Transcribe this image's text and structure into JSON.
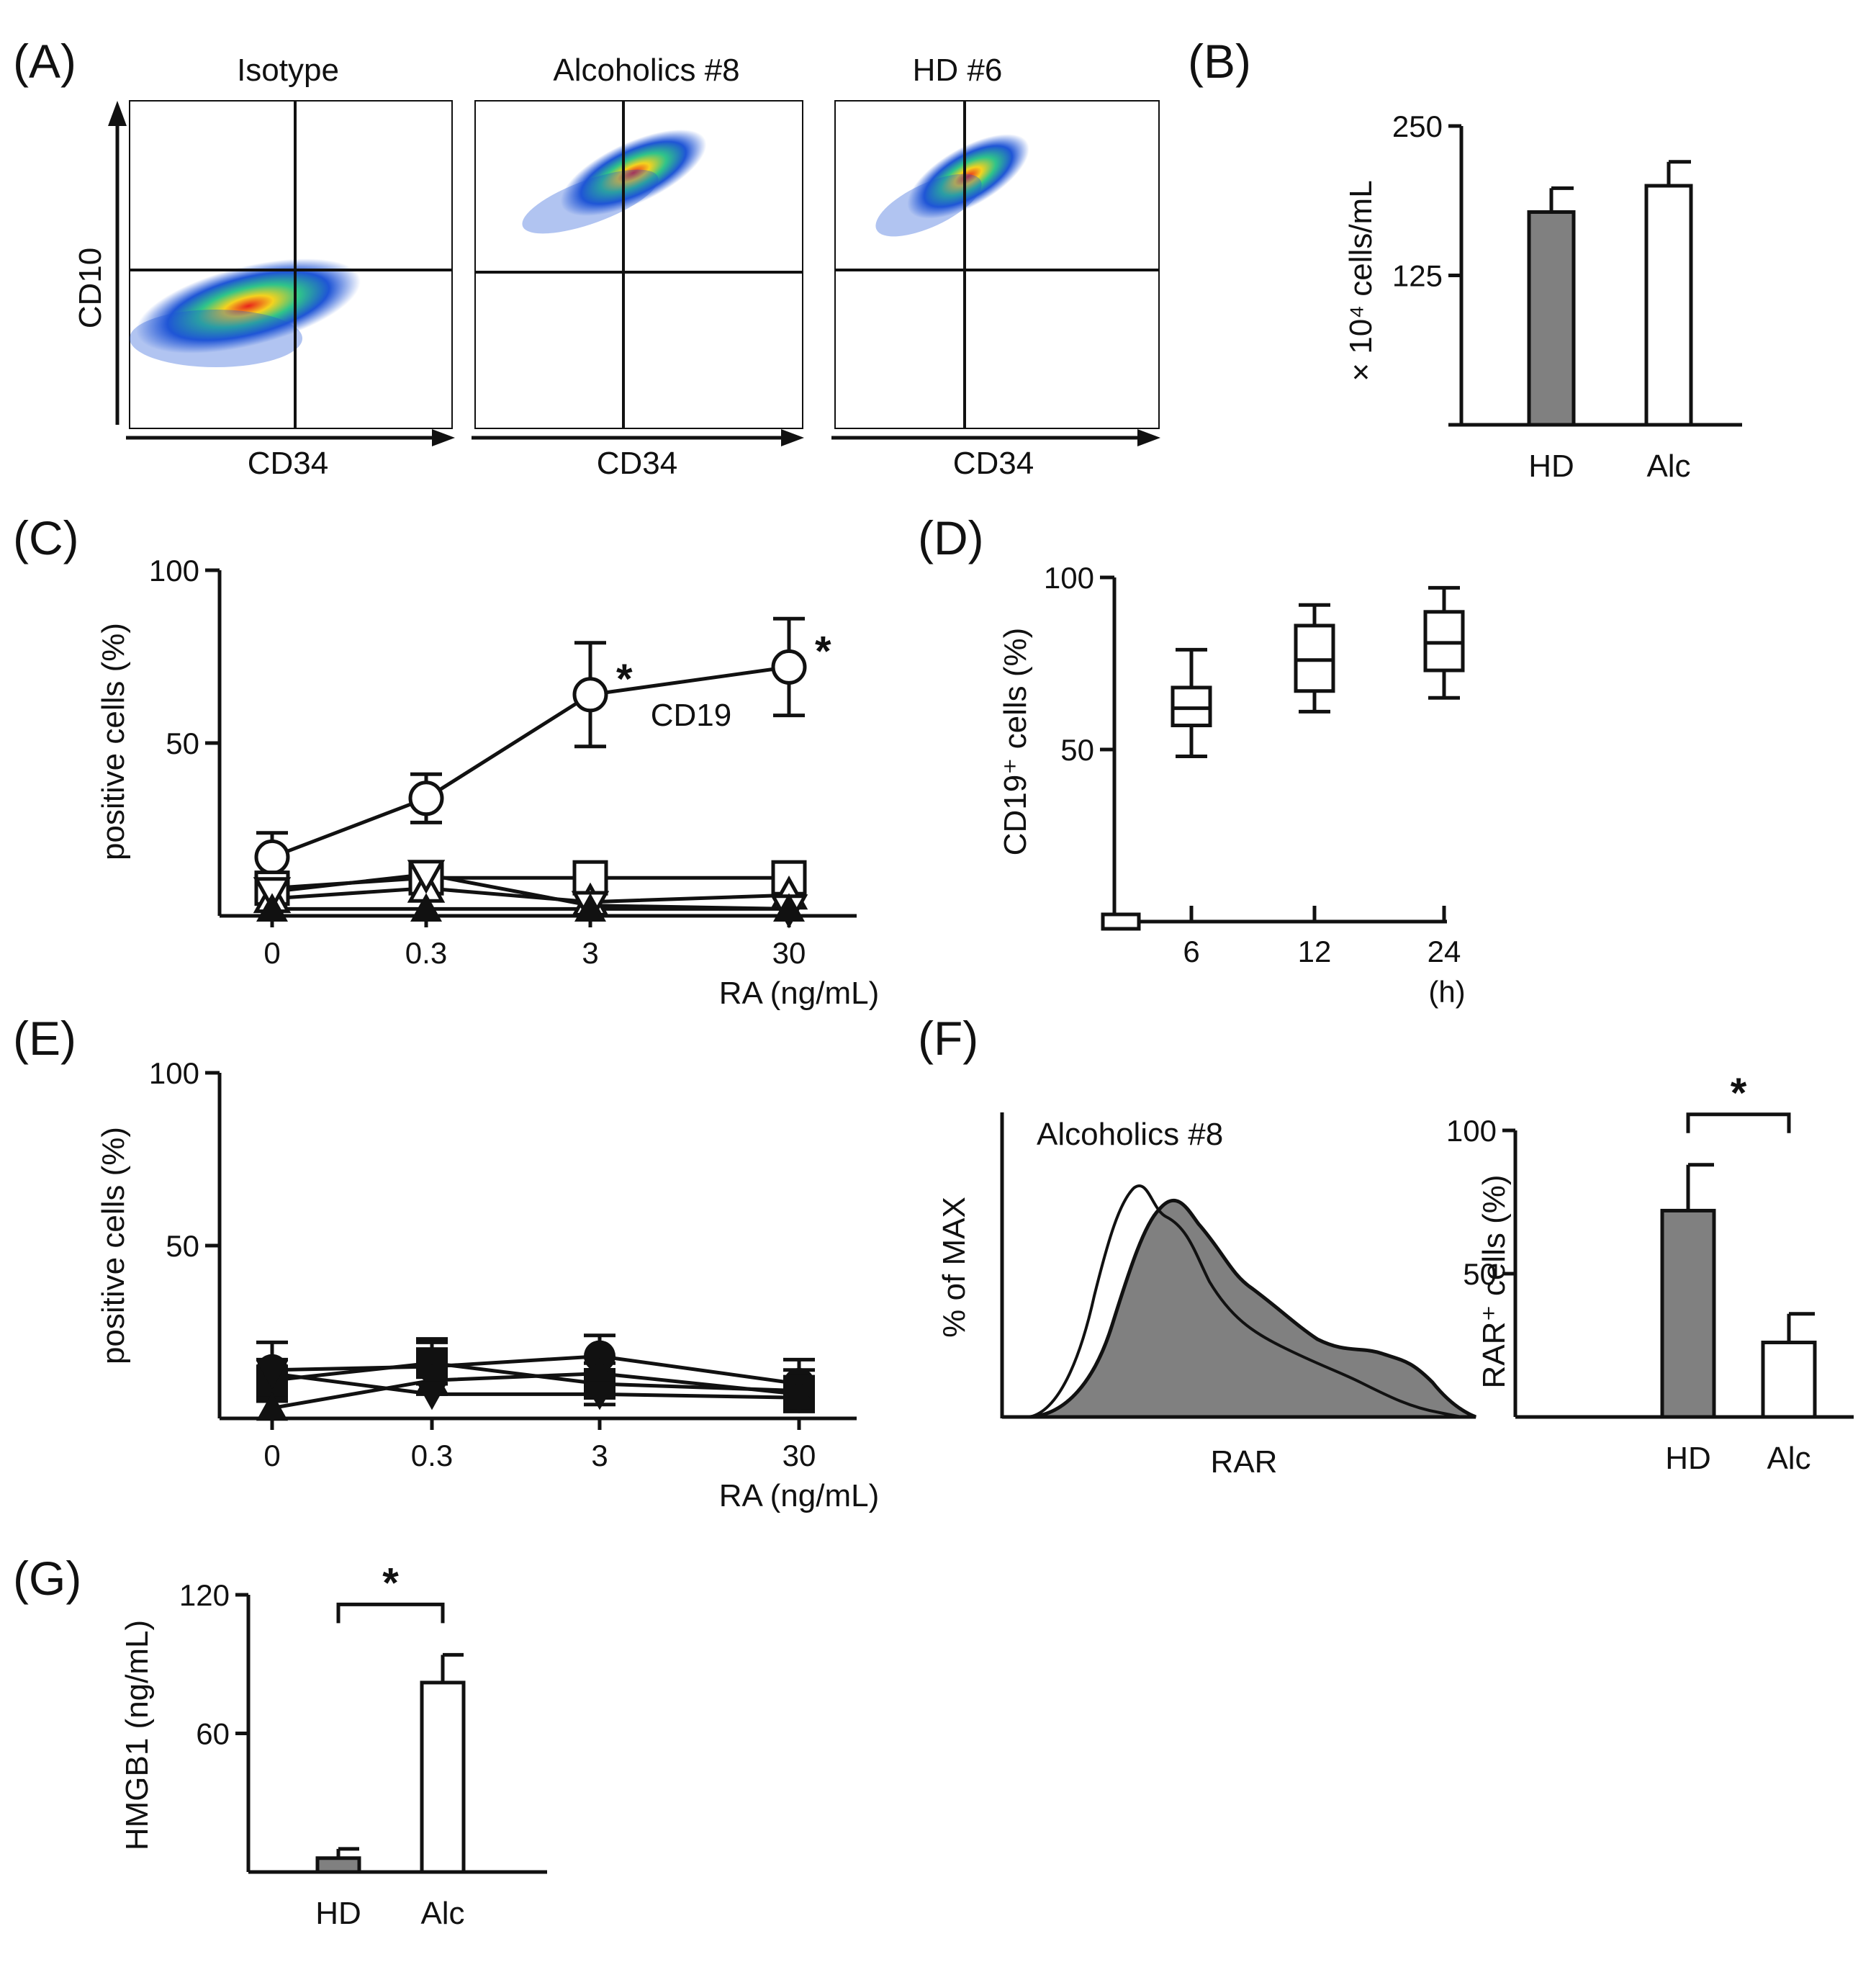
{
  "panels": {
    "A": {
      "label": "(A)",
      "facs": [
        {
          "title": "Isotype",
          "xlabel": "CD34",
          "ylabel": "CD10"
        },
        {
          "title": "Alcoholics #8",
          "xlabel": "CD34"
        },
        {
          "title": "HD #6",
          "xlabel": "CD34"
        }
      ]
    },
    "B": {
      "label": "(B)"
    },
    "C": {
      "label": "(C)"
    },
    "D": {
      "label": "(D)"
    },
    "E": {
      "label": "(E)"
    },
    "F": {
      "label": "(F)",
      "hist": {
        "title": "Alcoholics #8",
        "xlabel": "RAR",
        "ylabel": "% of MAX"
      }
    },
    "G": {
      "label": "(G)"
    }
  },
  "colors": {
    "hd_bar": "#808080",
    "alc_bar": "#ffffff",
    "stroke": "#111111"
  },
  "chart_data": [
    {
      "id": "B",
      "type": "bar",
      "categories": [
        "HD",
        "Alc"
      ],
      "values": [
        178,
        200
      ],
      "errors": [
        20,
        20
      ],
      "ylabel": "× 10⁴ cells/mL",
      "ylim": [
        0,
        250
      ],
      "yticks": [
        125,
        250
      ]
    },
    {
      "id": "C",
      "type": "line",
      "x": [
        "0",
        "0.3",
        "3",
        "30"
      ],
      "series": [
        {
          "name": "CD19",
          "marker": "open-circle",
          "values": [
            17,
            34,
            64,
            72
          ],
          "errors": [
            7,
            7,
            15,
            14
          ],
          "significant": [
            false,
            false,
            true,
            true
          ]
        },
        {
          "name": "open-square",
          "marker": "open-square",
          "values": [
            8,
            11,
            11,
            11
          ]
        },
        {
          "name": "open-triangle-up",
          "marker": "open-triangle-up",
          "values": [
            5,
            8,
            4,
            6
          ]
        },
        {
          "name": "open-triangle-down",
          "marker": "open-triangle-down",
          "values": [
            7,
            12,
            3,
            2
          ]
        },
        {
          "name": "filled-triangle",
          "marker": "filled-triangle-up",
          "values": [
            2,
            2,
            2,
            2
          ]
        }
      ],
      "annotation": "CD19",
      "significance_mark": "*",
      "ylabel": "positive cells (%)",
      "xlabel": "RA (ng/mL)",
      "ylim": [
        0,
        100
      ],
      "yticks": [
        50,
        100
      ]
    },
    {
      "id": "D",
      "type": "box",
      "categories": [
        "6",
        "12",
        "24"
      ],
      "boxes": [
        {
          "x": "6",
          "min": 48,
          "q1": 57,
          "median": 62,
          "q3": 68,
          "max": 79
        },
        {
          "x": "12",
          "min": 61,
          "q1": 67,
          "median": 76,
          "q3": 86,
          "max": 92
        },
        {
          "x": "24",
          "min": 65,
          "q1": 73,
          "median": 81,
          "q3": 90,
          "max": 97
        }
      ],
      "baseline": 0,
      "ylabel": "CD19⁺ cells (%)",
      "xunit": "(h)",
      "ylim": [
        0,
        100
      ],
      "yticks": [
        50,
        100
      ]
    },
    {
      "id": "E",
      "type": "line",
      "x": [
        "0",
        "0.3",
        "3",
        "30"
      ],
      "series": [
        {
          "name": "filled-circle",
          "marker": "filled-circle",
          "values": [
            14,
            15,
            18,
            10
          ],
          "errors": [
            8,
            8,
            6,
            7
          ]
        },
        {
          "name": "filled-square",
          "marker": "filled-square",
          "values": [
            11,
            16,
            10,
            8
          ],
          "errors": [
            6,
            6,
            6,
            6
          ]
        },
        {
          "name": "filled-triangle-up",
          "marker": "filled-triangle-up",
          "values": [
            3,
            11,
            13,
            7
          ]
        },
        {
          "name": "filled-triangle-down",
          "marker": "filled-triangle-down",
          "values": [
            13,
            7,
            7,
            6
          ]
        }
      ],
      "ylabel": "positive cells (%)",
      "xlabel": "RA (ng/mL)",
      "ylim": [
        0,
        100
      ],
      "yticks": [
        50,
        100
      ]
    },
    {
      "id": "F-bar",
      "type": "bar",
      "categories": [
        "HD",
        "Alc"
      ],
      "values": [
        72,
        26
      ],
      "errors": [
        16,
        10
      ],
      "ylabel": "RAR⁺ cells (%)",
      "ylim": [
        0,
        100
      ],
      "yticks": [
        50,
        100
      ],
      "significance_mark": "*"
    },
    {
      "id": "G",
      "type": "bar",
      "categories": [
        "HD",
        "Alc"
      ],
      "values": [
        6,
        82
      ],
      "errors": [
        4,
        12
      ],
      "ylabel": "HMGB1 (ng/mL)",
      "ylim": [
        0,
        120
      ],
      "yticks": [
        60,
        120
      ],
      "significance_mark": "*"
    }
  ]
}
